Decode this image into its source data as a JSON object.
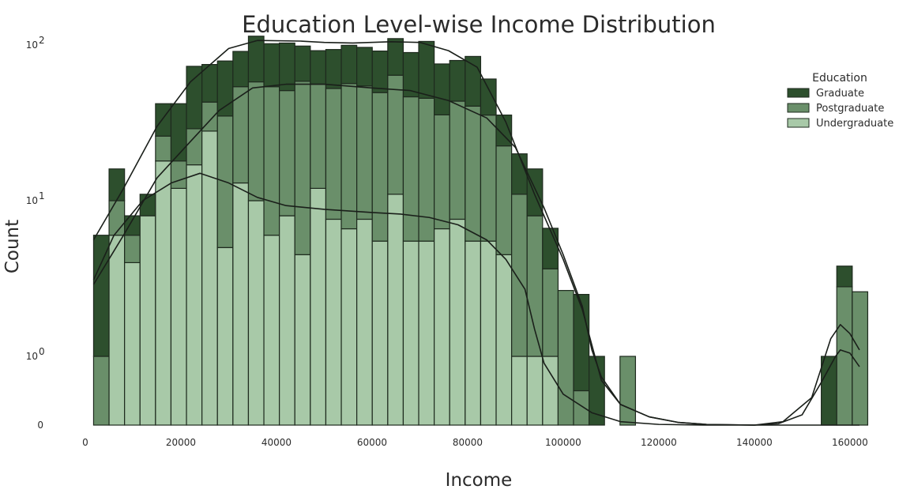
{
  "chart_data": {
    "type": "bar",
    "subtype": "stacked-histogram-with-kde",
    "title": "Education Level-wise Income Distribution",
    "xlabel": "Income",
    "ylabel": "Count",
    "yscale": "symlog",
    "xlim": [
      0,
      163000
    ],
    "x_ticks": [
      0,
      20000,
      40000,
      60000,
      80000,
      100000,
      120000,
      140000,
      160000
    ],
    "y_ticks": [
      {
        "value": 0,
        "base": "0",
        "exp": ""
      },
      {
        "value": 1,
        "base": "10",
        "exp": "0"
      },
      {
        "value": 10,
        "base": "10",
        "exp": "1"
      },
      {
        "value": 100,
        "base": "10",
        "exp": "2"
      }
    ],
    "grid": false,
    "legend": {
      "title": "Education",
      "position": "top-right"
    },
    "bin_width": 3240,
    "bin_starts": [
      1730,
      4970,
      8210,
      11450,
      14690,
      17930,
      21170,
      24410,
      27650,
      30890,
      34130,
      37370,
      40610,
      43850,
      47090,
      50330,
      53570,
      56810,
      60050,
      63290,
      66530,
      69770,
      73010,
      76250,
      79490,
      82730,
      85970,
      89210,
      92450,
      95690,
      98930,
      102170,
      105410,
      108650,
      111890,
      115130,
      118370,
      121610,
      124850,
      128090,
      131330,
      134570,
      137810,
      141050,
      144290,
      147530,
      150770,
      154010,
      157250,
      160490
    ],
    "series": [
      {
        "name": "Graduate",
        "color": "#2d4f2d",
        "values": [
          5,
          6,
          2,
          3,
          16,
          24,
          44,
          32,
          44,
          37,
          56,
          48,
          52,
          40,
          36,
          41,
          43,
          42,
          42,
          46,
          43,
          60,
          40,
          36,
          44,
          25,
          13,
          9,
          8,
          3,
          0,
          2,
          1,
          0,
          0,
          0,
          0,
          0,
          0,
          0,
          0,
          0,
          0,
          0,
          0,
          0,
          0,
          1,
          1,
          0
        ],
        "kde": [
          [
            1730,
            5.6
          ],
          [
            8000,
            12
          ],
          [
            15000,
            30
          ],
          [
            22000,
            58
          ],
          [
            30000,
            95
          ],
          [
            36000,
            107
          ],
          [
            45000,
            106
          ],
          [
            50000,
            104
          ],
          [
            56000,
            103
          ],
          [
            64000,
            105
          ],
          [
            70000,
            104
          ],
          [
            76000,
            92
          ],
          [
            82000,
            72
          ],
          [
            88000,
            32
          ],
          [
            94000,
            11
          ],
          [
            100000,
            4.2
          ],
          [
            104000,
            2.0
          ],
          [
            108000,
            0.65
          ],
          [
            112000,
            0.3
          ],
          [
            118000,
            0.12
          ],
          [
            124000,
            0.04
          ],
          [
            130000,
            0.01
          ],
          [
            140000,
            0
          ],
          [
            145000,
            0.02
          ],
          [
            150000,
            0.15
          ],
          [
            154000,
            0.62
          ],
          [
            157000,
            1.0
          ],
          [
            158000,
            1.1
          ],
          [
            160000,
            1.05
          ],
          [
            162000,
            0.85
          ]
        ]
      },
      {
        "name": "Postgraduate",
        "color": "#6a8f6a",
        "values": [
          1,
          4,
          2,
          0,
          8,
          6,
          12,
          15,
          30,
          41,
          48,
          48,
          43,
          54,
          44,
          45,
          50,
          47,
          44,
          53,
          41,
          40,
          29,
          36,
          35,
          30,
          18,
          10,
          7,
          2.65,
          2.65,
          0.5,
          0,
          0,
          1,
          0,
          0,
          0,
          0,
          0,
          0,
          0,
          0,
          0,
          0,
          0,
          0,
          0,
          2.8,
          2.6
        ],
        "kde": [
          [
            1730,
            2.9
          ],
          [
            8000,
            6
          ],
          [
            15000,
            14
          ],
          [
            22000,
            24
          ],
          [
            28000,
            38
          ],
          [
            35000,
            53
          ],
          [
            42000,
            56
          ],
          [
            50000,
            56
          ],
          [
            60000,
            53
          ],
          [
            68000,
            51
          ],
          [
            76000,
            44
          ],
          [
            84000,
            34
          ],
          [
            90000,
            22
          ],
          [
            96000,
            9
          ],
          [
            100000,
            4.5
          ],
          [
            104000,
            2.1
          ],
          [
            106000,
            1.1
          ],
          [
            108000,
            0.7
          ],
          [
            112000,
            0.3
          ],
          [
            118000,
            0.12
          ],
          [
            124000,
            0.04
          ],
          [
            130000,
            0.01
          ],
          [
            140000,
            0
          ],
          [
            146000,
            0.05
          ],
          [
            152000,
            0.4
          ],
          [
            156000,
            1.3
          ],
          [
            158000,
            1.6
          ],
          [
            160000,
            1.4
          ],
          [
            162000,
            1.1
          ]
        ]
      },
      {
        "name": "Undergraduate",
        "color": "#a8c9a8",
        "values": [
          0,
          6,
          4,
          8,
          18,
          12,
          17,
          28,
          5,
          13,
          10,
          6,
          8,
          4.5,
          12,
          7.6,
          6.6,
          7.6,
          5.5,
          11,
          5.5,
          5.5,
          6.6,
          7.6,
          5.5,
          5.5,
          4.5,
          1,
          1,
          1,
          0,
          0,
          0,
          0,
          0,
          0,
          0,
          0,
          0,
          0,
          0,
          0,
          0,
          0,
          0,
          0,
          0,
          0,
          0,
          0
        ],
        "kde": [
          [
            1730,
            3.1
          ],
          [
            6000,
            6
          ],
          [
            12000,
            10
          ],
          [
            18000,
            13
          ],
          [
            24000,
            15
          ],
          [
            30000,
            13
          ],
          [
            36000,
            10.5
          ],
          [
            42000,
            9.3
          ],
          [
            50000,
            8.8
          ],
          [
            60000,
            8.4
          ],
          [
            66000,
            8.2
          ],
          [
            72000,
            7.8
          ],
          [
            78000,
            7
          ],
          [
            84000,
            5.6
          ],
          [
            88000,
            4.2
          ],
          [
            92000,
            2.7
          ],
          [
            94000,
            1.5
          ],
          [
            96000,
            0.9
          ],
          [
            100000,
            0.45
          ],
          [
            106000,
            0.18
          ],
          [
            112000,
            0.05
          ],
          [
            120000,
            0.01
          ],
          [
            130000,
            0
          ],
          [
            162000,
            0
          ]
        ]
      }
    ]
  }
}
